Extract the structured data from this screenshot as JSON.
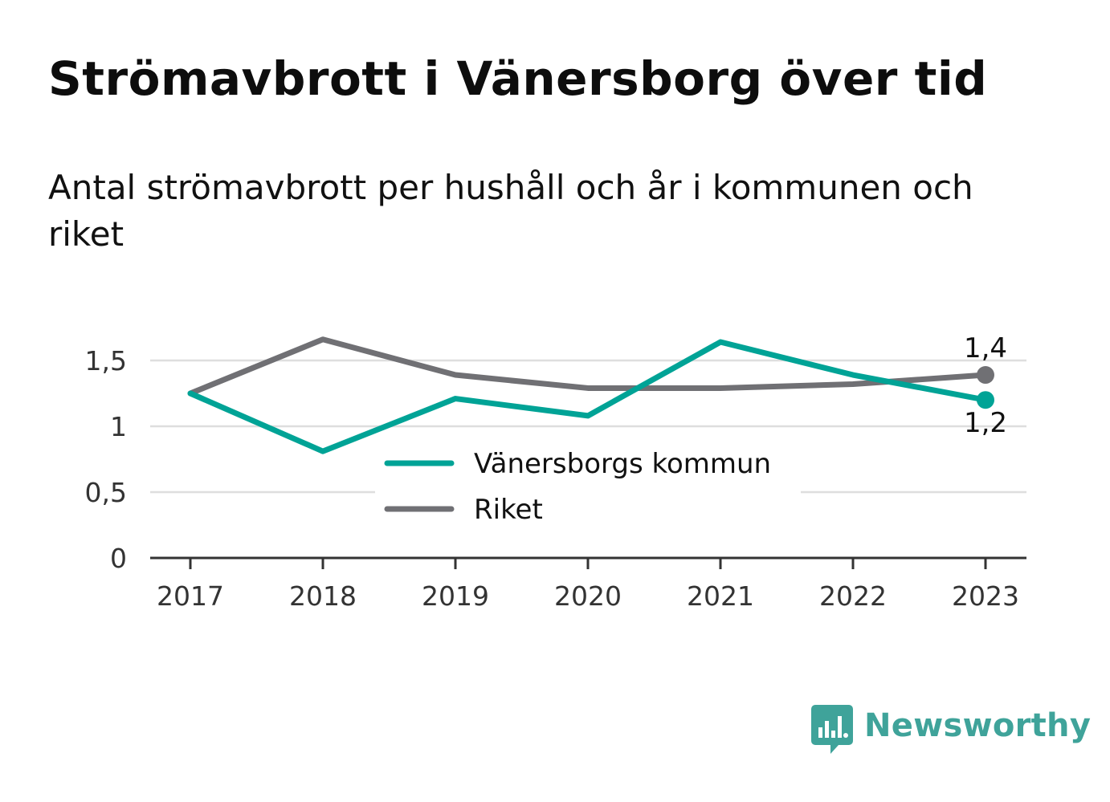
{
  "title": "Strömavbrott i Vänersborg över tid",
  "subtitle": "Antal strömavbrott per hushåll och år i kommunen och riket",
  "logo": {
    "text": "Newsworthy",
    "icon": "bar-chart-speech-bubble-icon",
    "color": "#3fa39a"
  },
  "chart_data": {
    "type": "line",
    "x": [
      "2017",
      "2018",
      "2019",
      "2020",
      "2021",
      "2022",
      "2023"
    ],
    "series": [
      {
        "name": "Vänersborgs kommun",
        "color": "#00a396",
        "values": [
          1.25,
          0.81,
          1.21,
          1.08,
          1.64,
          1.39,
          1.2
        ],
        "end_label": "1,2"
      },
      {
        "name": "Riket",
        "color": "#707074",
        "values": [
          1.25,
          1.66,
          1.39,
          1.29,
          1.29,
          1.32,
          1.39
        ],
        "end_label": "1,4"
      }
    ],
    "yticks": [
      {
        "value": 0,
        "label": "0"
      },
      {
        "value": 0.5,
        "label": "0,5"
      },
      {
        "value": 1,
        "label": "1"
      },
      {
        "value": 1.5,
        "label": "1,5"
      }
    ],
    "ylim": [
      0,
      1.75
    ],
    "grid": true,
    "legend_position": "bottom-center",
    "xlabel": "",
    "ylabel": ""
  }
}
